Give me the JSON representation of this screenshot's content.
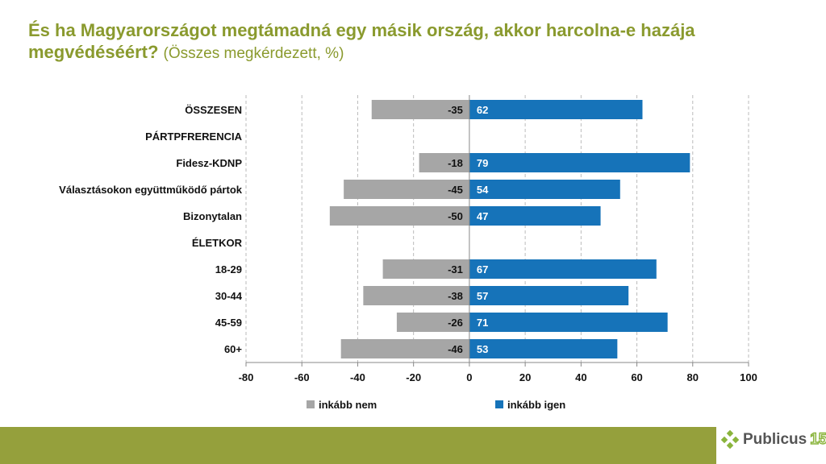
{
  "title": {
    "main": "És ha Magyarországot megtámadná egy másik ország, akkor harcolna-e hazája megvédéséért?",
    "sub": "(Összes megkérdezett, %)"
  },
  "chart_data": {
    "type": "bar",
    "orientation": "horizontal",
    "stacked": "diverging",
    "categories": [
      "ÖSSZESEN",
      "PÁRTPFRERENCIA",
      "Fidesz-KDNP",
      "Választásokon együttműködő pártok",
      "Bizonytalan",
      "ÉLETKOR",
      "18-29",
      "30-44",
      "45-59",
      "60+"
    ],
    "series": [
      {
        "name": "inkább nem",
        "color": "#a6a6a6",
        "values": [
          -35,
          null,
          -18,
          -45,
          -50,
          null,
          -31,
          -38,
          -26,
          -46
        ]
      },
      {
        "name": "inkább igen",
        "color": "#1673b9",
        "values": [
          62,
          null,
          79,
          54,
          47,
          null,
          67,
          57,
          71,
          53
        ]
      }
    ],
    "xlim": [
      -80,
      100
    ],
    "xticks": [
      -80,
      -60,
      -40,
      -20,
      0,
      20,
      40,
      60,
      80,
      100
    ],
    "grid": true,
    "legend": "bottom"
  },
  "logo": {
    "text": "Publicus",
    "number": "15"
  }
}
